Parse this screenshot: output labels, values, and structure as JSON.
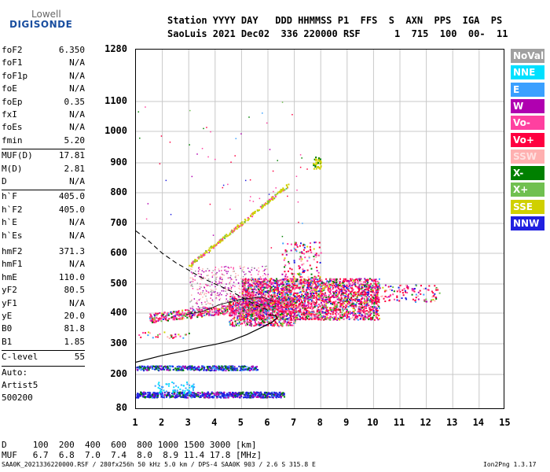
{
  "logo": {
    "line1": "Lowell",
    "line2": "DIGISONDE"
  },
  "header": {
    "line1": "Station YYYY DAY   DDD HHMMSS P1  FFS  S  AXN  PPS  IGA  PS",
    "line2": "SaoLuis 2021 Dec02  336 220000 RSF      1  715  100  00-  11"
  },
  "params": {
    "group1": [
      {
        "name": "foF2",
        "value": "6.350"
      },
      {
        "name": "foF1",
        "value": "N/A"
      },
      {
        "name": "foF1p",
        "value": "N/A"
      },
      {
        "name": "foE",
        "value": "N/A"
      },
      {
        "name": "foEp",
        "value": "0.35"
      },
      {
        "name": "fxI",
        "value": "N/A"
      },
      {
        "name": "foEs",
        "value": "N/A"
      },
      {
        "name": "fmin",
        "value": "5.20"
      }
    ],
    "group2": [
      {
        "name": "MUF(D)",
        "value": "17.81"
      },
      {
        "name": "M(D)",
        "value": "2.81"
      },
      {
        "name": "D",
        "value": "N/A"
      }
    ],
    "group3": [
      {
        "name": "h`F",
        "value": "405.0"
      },
      {
        "name": "h`F2",
        "value": "405.0"
      },
      {
        "name": "h`E",
        "value": "N/A"
      },
      {
        "name": "h`Es",
        "value": "N/A"
      }
    ],
    "group4": [
      {
        "name": "hmF2",
        "value": "371.3"
      },
      {
        "name": "hmF1",
        "value": "N/A"
      },
      {
        "name": "hmE",
        "value": "110.0"
      },
      {
        "name": "yF2",
        "value": "80.5"
      },
      {
        "name": "yF1",
        "value": "N/A"
      },
      {
        "name": "yE",
        "value": "20.0"
      },
      {
        "name": "B0",
        "value": "81.8"
      },
      {
        "name": "B1",
        "value": "1.85"
      }
    ],
    "clevel": {
      "name": "C-level",
      "value": "55"
    },
    "auto": [
      "Auto:",
      "Artist5",
      "500200"
    ]
  },
  "axes": {
    "y_ticks": [
      "1280",
      "1100",
      "1000",
      "900",
      "800",
      "700",
      "600",
      "500",
      "400",
      "300",
      "200",
      "80"
    ],
    "x_ticks": [
      "1",
      "2",
      "3",
      "4",
      "5",
      "6",
      "7",
      "8",
      "9",
      "10",
      "11",
      "12",
      "13",
      "14",
      "15"
    ]
  },
  "legend": [
    {
      "label": "NoVal",
      "color": "#a0a0a0"
    },
    {
      "label": "NNE",
      "color": "#00e0ff"
    },
    {
      "label": "E",
      "color": "#3aa0ff"
    },
    {
      "label": "W",
      "color": "#b000b0"
    },
    {
      "label": "Vo-",
      "color": "#ff40a0"
    },
    {
      "label": "Vo+",
      "color": "#ff0040"
    },
    {
      "label": "SSW",
      "color": "#ffb0b0"
    },
    {
      "label": "X-",
      "color": "#008000"
    },
    {
      "label": "X+",
      "color": "#70c050"
    },
    {
      "label": "SSE",
      "color": "#d0d000"
    },
    {
      "label": "NNW",
      "color": "#2020e0"
    }
  ],
  "muf_table": {
    "d_row": "D     100  200  400  600  800 1000 1500 3000 [km]",
    "muf_row": "MUF   6.7  6.8  7.0  7.4  8.0  8.9 11.4 17.8 [MHz]"
  },
  "footer": {
    "left": "SAA0K_2021336220000.RSF / 280fx256h 50 kHz 5.0 km / DPS-4 SAA0K 903 / 2.6 S 315.8 E",
    "right": "Ion2Png 1.3.17"
  }
}
